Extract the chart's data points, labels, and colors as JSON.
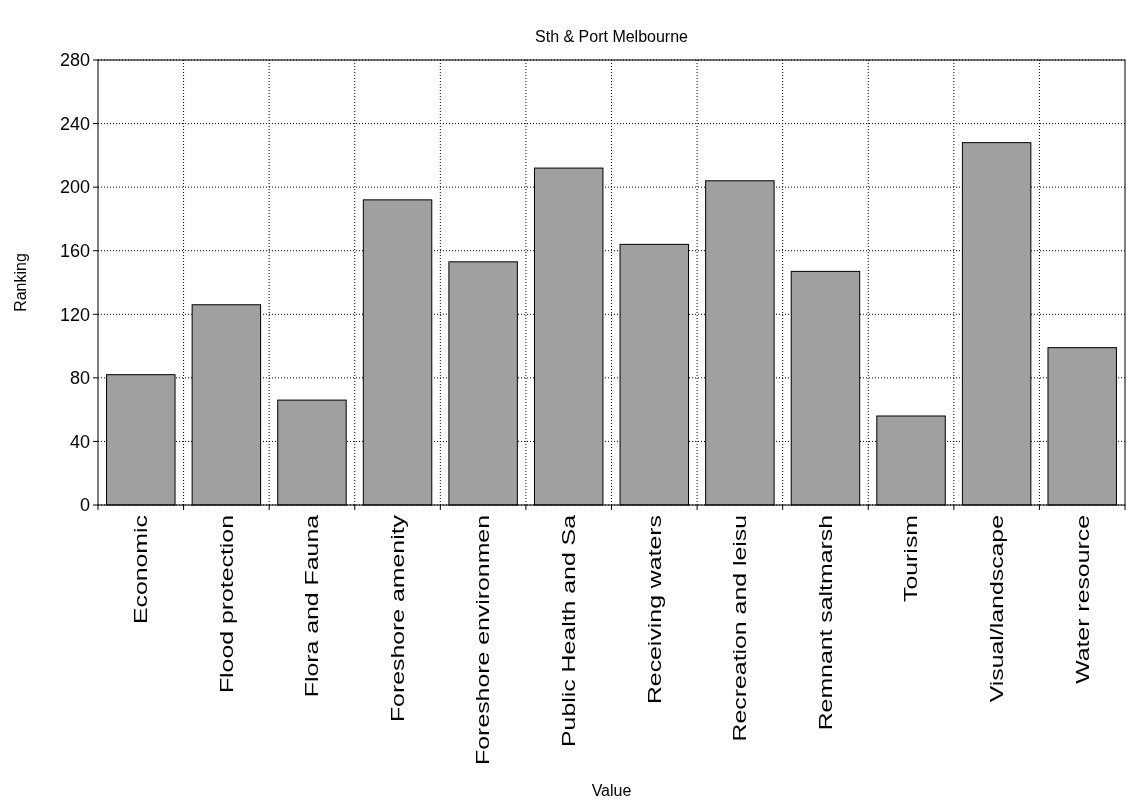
{
  "chart_data": {
    "type": "bar",
    "title": "Sth & Port Melbourne",
    "xlabel": "Value",
    "ylabel": "Ranking",
    "categories": [
      "Economic",
      "Flood protection",
      "Flora and Fauna",
      "Foreshore amenity",
      "Foreshore environmen",
      "Public Health and Sa",
      "Receiving waters",
      "Recreation and leisu",
      "Remnant saltmarsh",
      "Tourism",
      "Visual/landscape",
      "Water resource"
    ],
    "values": [
      82,
      126,
      66,
      192,
      153,
      212,
      164,
      204,
      147,
      56,
      228,
      99
    ],
    "color": "#a0a0a0",
    "ylim": [
      0,
      280
    ],
    "yticks": [
      0,
      40,
      80,
      120,
      160,
      200,
      240,
      280
    ],
    "grid": true
  }
}
